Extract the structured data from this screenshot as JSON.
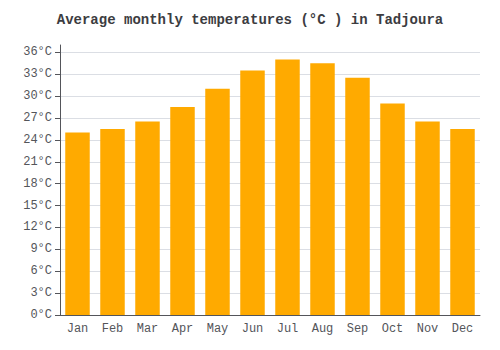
{
  "chart_data": {
    "type": "bar",
    "title": "Average monthly temperatures (°C ) in Tadjoura",
    "categories": [
      "Jan",
      "Feb",
      "Mar",
      "Apr",
      "May",
      "Jun",
      "Jul",
      "Aug",
      "Sep",
      "Oct",
      "Nov",
      "Dec"
    ],
    "values": [
      25.0,
      25.5,
      26.5,
      28.5,
      31.0,
      33.5,
      35.0,
      34.5,
      32.5,
      29.0,
      26.5,
      25.5
    ],
    "color": "#FFAA00",
    "ylim": [
      0,
      37
    ],
    "yticks": [
      {
        "value": 0,
        "label": "0°C"
      },
      {
        "value": 3,
        "label": "3°C"
      },
      {
        "value": 6,
        "label": "6°C"
      },
      {
        "value": 9,
        "label": "9°C"
      },
      {
        "value": 12,
        "label": "12°C"
      },
      {
        "value": 15,
        "label": "15°C"
      },
      {
        "value": 18,
        "label": "18°C"
      },
      {
        "value": 21,
        "label": "21°C"
      },
      {
        "value": 24,
        "label": "24°C"
      },
      {
        "value": 27,
        "label": "27°C"
      },
      {
        "value": 30,
        "label": "30°C"
      },
      {
        "value": 33,
        "label": "33°C"
      },
      {
        "value": 36,
        "label": "36°C"
      }
    ],
    "grid": true
  }
}
